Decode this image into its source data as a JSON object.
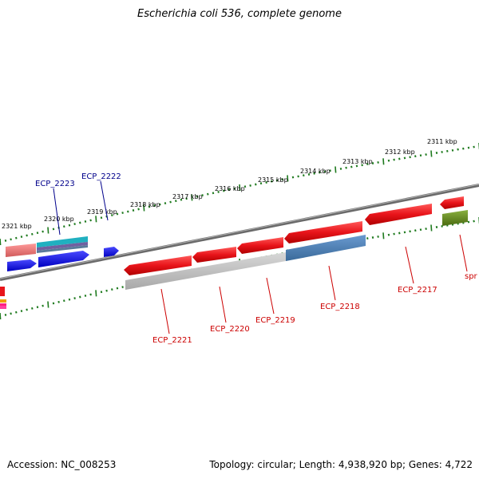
{
  "title": "Escherichia coli 536, complete genome",
  "footer": {
    "accession": "Accession: NC_008253",
    "topology": "Topology: circular; Length: 4,938,920 bp; Genes: 4,722"
  },
  "scale_labels": [
    "2321 kbp",
    "2320 kbp",
    "2319 kbp",
    "2318 kbp",
    "2317 kbp",
    "2316 kbp",
    "2315 kbp",
    "2314 kbp",
    "2313 kbp",
    "2312 kbp",
    "2311 kbp"
  ],
  "gene_labels": {
    "ECP_2223": "ECP_2223",
    "ECP_2222": "ECP_2222",
    "ECP_2221": "ECP_2221",
    "ECP_2220": "ECP_2220",
    "ECP_2219": "ECP_2219",
    "ECP_2218": "ECP_2218",
    "ECP_2217": "ECP_2217",
    "spr": "spr"
  },
  "colors": {
    "gene_red": "#e8141a",
    "gene_blue": "#1010e0",
    "backbone": "#7a7a7a",
    "tick": "#1e7a1e",
    "label_red": "#cc0000",
    "label_blue": "#00008b"
  }
}
